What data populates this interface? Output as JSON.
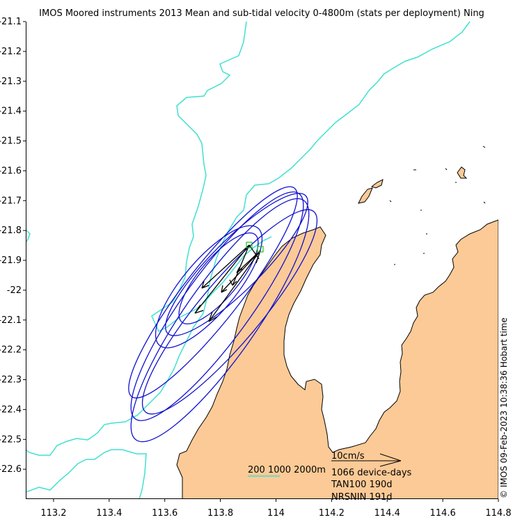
{
  "title": "IMOS Moored instruments 2013 Mean and sub-tidal velocity 0-4800m (stats per deployment) Ning",
  "side_label": "© IMOS 09-Feb-2023 10:38:36 Hobart time",
  "colors": {
    "land": "#fcca96",
    "bathymetry": "#40e0d0",
    "ellipse": "#1010d0",
    "mooring": "#20c020",
    "vector": "#000000"
  },
  "legend": {
    "bathy_contours": "200 1000 2000m",
    "scale_label": "10cm/s",
    "device_days": "1066 device-days",
    "sites": [
      "TAN100 190d",
      "NRSNIN 191d"
    ]
  },
  "chart_data": {
    "type": "map",
    "x_axis": {
      "range": [
        113.1,
        114.8
      ],
      "ticks": [
        "113.2",
        "113.4",
        "113.6",
        "113.8",
        "114",
        "114.2",
        "114.4",
        "114.6",
        "114.8"
      ]
    },
    "y_axis": {
      "range": [
        -22.7,
        -21.1
      ],
      "ticks": [
        "-21.1",
        "-21.2",
        "-21.3",
        "-21.4",
        "-21.5",
        "-21.6",
        "-21.7",
        "-21.8",
        "-21.9",
        "-22",
        "-22.1",
        "-22.2",
        "-22.3",
        "-22.4",
        "-22.5",
        "-22.6"
      ]
    },
    "moorings": [
      {
        "name": "TAN100",
        "lon": 113.94,
        "lat": -21.87
      },
      {
        "name": "NRSNIN",
        "lon": 113.9,
        "lat": -21.85
      }
    ]
  }
}
